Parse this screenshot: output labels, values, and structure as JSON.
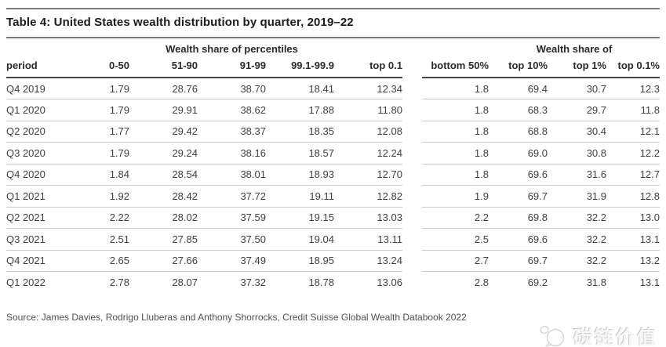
{
  "title": "Table 4: United States wealth distribution by quarter, 2019–22",
  "table": {
    "left_group_header": "Wealth share of percentiles",
    "right_group_header": "Wealth share of",
    "left_columns": [
      "period",
      "0-50",
      "51-90",
      "91-99",
      "99.1-99.9",
      "top 0.1"
    ],
    "right_columns": [
      "bottom 50%",
      "top 10%",
      "top 1%",
      "top 0.1%"
    ],
    "rows": [
      {
        "period": "Q4 2019",
        "left": [
          "1.79",
          "28.76",
          "38.70",
          "18.41",
          "12.34"
        ],
        "right": [
          "1.8",
          "69.4",
          "30.7",
          "12.3"
        ]
      },
      {
        "period": "Q1 2020",
        "left": [
          "1.79",
          "29.91",
          "38.62",
          "17.88",
          "11.80"
        ],
        "right": [
          "1.8",
          "68.3",
          "29.7",
          "11.8"
        ]
      },
      {
        "period": "Q2 2020",
        "left": [
          "1.77",
          "29.42",
          "38.37",
          "18.35",
          "12.08"
        ],
        "right": [
          "1.8",
          "68.8",
          "30.4",
          "12.1"
        ]
      },
      {
        "period": "Q3 2020",
        "left": [
          "1.79",
          "29.24",
          "38.16",
          "18.57",
          "12.24"
        ],
        "right": [
          "1.8",
          "69.0",
          "30.8",
          "12.2"
        ]
      },
      {
        "period": "Q4 2020",
        "left": [
          "1.84",
          "28.54",
          "38.01",
          "18.93",
          "12.70"
        ],
        "right": [
          "1.8",
          "69.6",
          "31.6",
          "12.7"
        ]
      },
      {
        "period": "Q1 2021",
        "left": [
          "1.92",
          "28.42",
          "37.72",
          "19.11",
          "12.82"
        ],
        "right": [
          "1.9",
          "69.7",
          "31.9",
          "12.8"
        ]
      },
      {
        "period": "Q2 2021",
        "left": [
          "2.22",
          "28.02",
          "37.59",
          "19.15",
          "13.03"
        ],
        "right": [
          "2.2",
          "69.8",
          "32.2",
          "13.0"
        ]
      },
      {
        "period": "Q3 2021",
        "left": [
          "2.51",
          "27.85",
          "37.50",
          "19.04",
          "13.11"
        ],
        "right": [
          "2.5",
          "69.6",
          "32.2",
          "13.1"
        ]
      },
      {
        "period": "Q4 2021",
        "left": [
          "2.65",
          "27.66",
          "37.49",
          "18.95",
          "13.24"
        ],
        "right": [
          "2.7",
          "69.7",
          "32.2",
          "13.2"
        ]
      },
      {
        "period": "Q1 2022",
        "left": [
          "2.78",
          "28.07",
          "37.32",
          "18.78",
          "13.06"
        ],
        "right": [
          "2.8",
          "69.2",
          "31.8",
          "13.1"
        ]
      }
    ]
  },
  "source": "Source: James Davies, Rodrigo Lluberas and Anthony Shorrocks, Credit Suisse Global Wealth Databook 2022",
  "watermark": {
    "text": "碳链价值",
    "icon": "speech-bubble-logo-icon"
  },
  "colors": {
    "rule": "#7d7d7d",
    "header_rule": "#454545",
    "row_separator": "#cccccc",
    "title_text": "#1c1c1c",
    "body_text": "#3f3f3f",
    "watermark": "#d9d9d9"
  }
}
